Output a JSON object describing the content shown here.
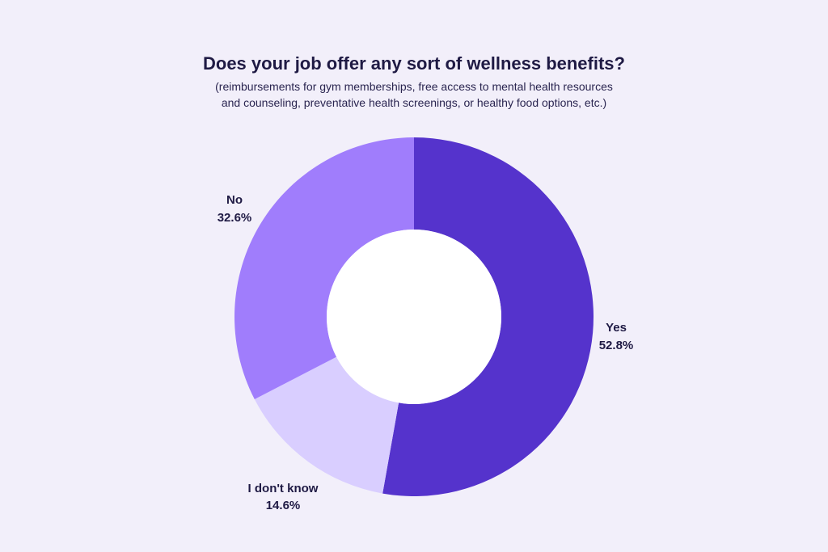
{
  "chart_data": {
    "type": "pie",
    "donut": true,
    "title": "Does your job offer any sort of wellness benefits?",
    "subtitle_lines": [
      "(reimbursements for gym memberships, free access to mental health resources",
      "and counseling, preventative health screenings, or healthy food options, etc.)"
    ],
    "categories": [
      "Yes",
      "I don't know",
      "No"
    ],
    "values": [
      52.8,
      14.6,
      32.6
    ],
    "value_labels": [
      "52.8%",
      "14.6%",
      "32.6%"
    ],
    "colors": [
      "#5533cc",
      "#d9ceff",
      "#a07dfc"
    ],
    "legend": "none"
  }
}
